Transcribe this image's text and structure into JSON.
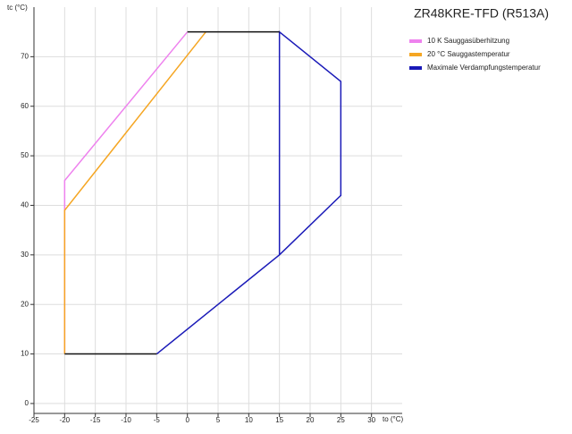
{
  "chart_data": {
    "type": "line",
    "title": "ZR48KRE-TFD (R513A)",
    "x_label": "to (°C)",
    "y_label": "tc (°C)",
    "xlim": [
      -25,
      35
    ],
    "ylim": [
      -2,
      80
    ],
    "xticks": [
      -25,
      -20,
      -15,
      -10,
      -5,
      0,
      5,
      10,
      15,
      20,
      25,
      30
    ],
    "yticks": [
      0,
      10,
      20,
      30,
      40,
      50,
      60,
      70
    ],
    "grid": true,
    "legend": "top-right",
    "series": [
      {
        "name": "10 K Sauggasüberhitzung",
        "color": "#ee82ee",
        "x": [
          -20,
          -20,
          0
        ],
        "values": [
          10,
          45,
          75
        ]
      },
      {
        "name": "20 °C Sauggastemperatur",
        "color": "#f5a623",
        "x": [
          -20,
          -20,
          3
        ],
        "values": [
          10,
          39,
          75
        ]
      },
      {
        "name": "Maximale Verdampfungstemperatur",
        "color": "#1a1ab8",
        "x": [
          -5,
          15,
          25,
          25,
          15,
          15
        ],
        "values": [
          10,
          30,
          42,
          65,
          75,
          30
        ]
      },
      {
        "color": "#111111",
        "x": [
          -20,
          -5,
          null,
          0,
          15
        ],
        "values": [
          10,
          10,
          null,
          75,
          75
        ]
      }
    ]
  }
}
